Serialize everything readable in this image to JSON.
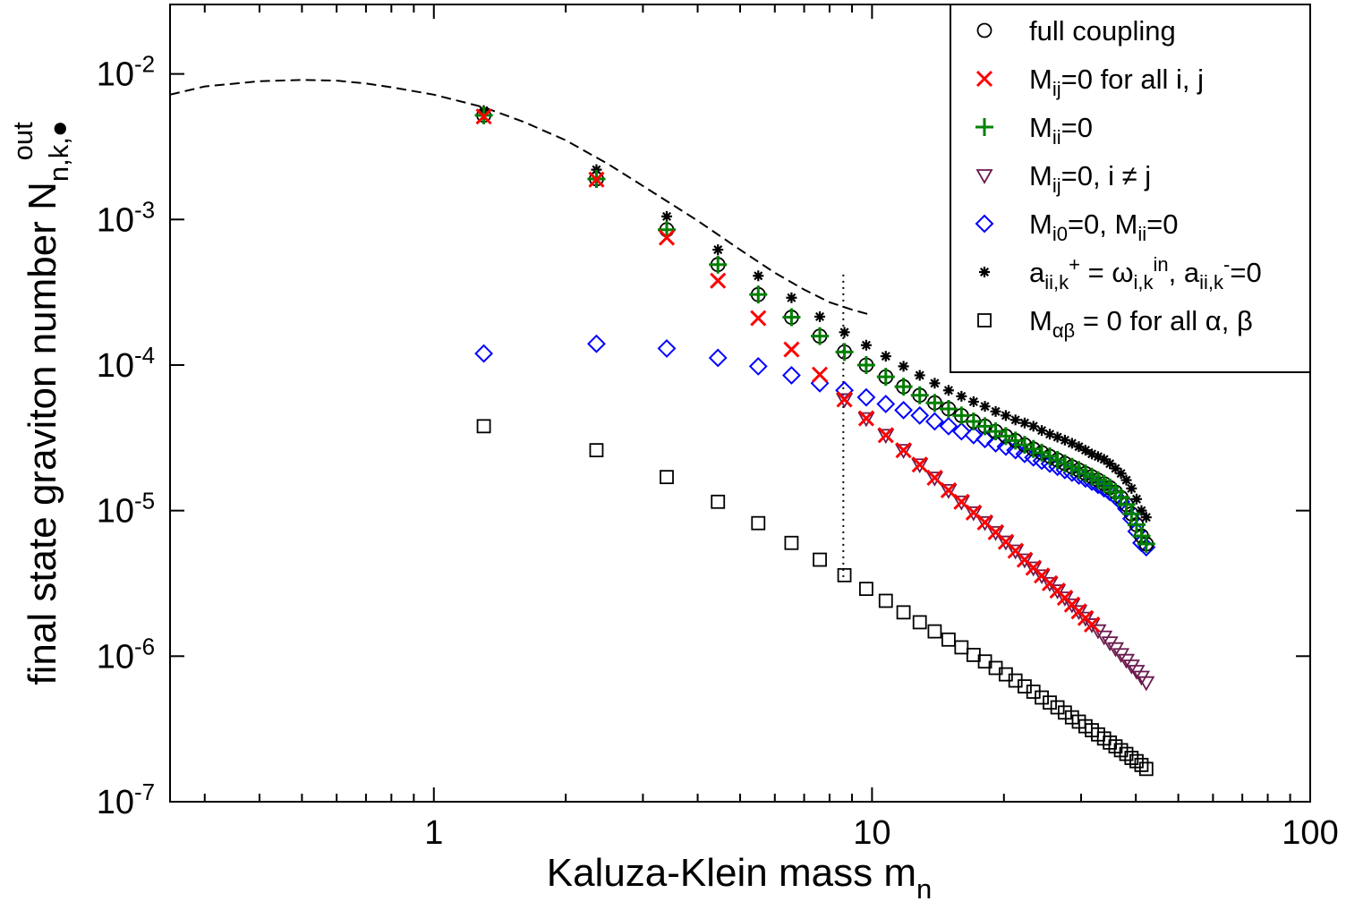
{
  "chart_data": {
    "type": "scatter",
    "xscale": "log",
    "yscale": "log",
    "xlim": [
      0.25,
      100
    ],
    "ylim": [
      1e-07,
      0.03
    ],
    "xlabel": {
      "main": "Kaluza-Klein mass m",
      "sub": "n"
    },
    "ylabel": {
      "main": "final state graviton number N",
      "sub": "n,k,●",
      "sup": "out"
    },
    "x_ticks": [
      {
        "value": 1,
        "label": "1"
      },
      {
        "value": 10,
        "label": "10"
      },
      {
        "value": 100,
        "label": "100"
      }
    ],
    "y_ticks": [
      {
        "value": 1e-07,
        "base": "10",
        "exp": "-7"
      },
      {
        "value": 1e-06,
        "base": "10",
        "exp": "-6"
      },
      {
        "value": 1e-05,
        "base": "10",
        "exp": "-5"
      },
      {
        "value": 0.0001,
        "base": "10",
        "exp": "-4"
      },
      {
        "value": 0.001,
        "base": "10",
        "exp": "-3"
      },
      {
        "value": 0.01,
        "base": "10",
        "exp": "-2"
      }
    ],
    "grid": false,
    "legend_position": "top-right",
    "legend": [
      {
        "marker": "circle",
        "color": "#000000",
        "parts": [
          [
            "full coupling",
            ""
          ]
        ]
      },
      {
        "marker": "cross",
        "color": "#ff0000",
        "parts": [
          [
            "M",
            ""
          ],
          [
            "ij",
            "sub"
          ],
          [
            "=0 for all i, j",
            ""
          ]
        ]
      },
      {
        "marker": "plus",
        "color": "#008000",
        "parts": [
          [
            "M",
            ""
          ],
          [
            "ii",
            "sub"
          ],
          [
            "=0",
            ""
          ]
        ]
      },
      {
        "marker": "triangle-down",
        "color": "#6a1b4d",
        "parts": [
          [
            "M",
            ""
          ],
          [
            "ij",
            "sub"
          ],
          [
            "=0, i ≠ j",
            ""
          ]
        ]
      },
      {
        "marker": "diamond",
        "color": "#0000ff",
        "parts": [
          [
            "M",
            ""
          ],
          [
            "i0",
            "sub"
          ],
          [
            "=0, M",
            ""
          ],
          [
            "ii",
            "sub"
          ],
          [
            "=0",
            ""
          ]
        ]
      },
      {
        "marker": "star",
        "color": "#000000",
        "parts": [
          [
            "a",
            ""
          ],
          [
            "ii,k",
            "sub"
          ],
          [
            "+",
            "sup"
          ],
          [
            " = ω",
            ""
          ],
          [
            "i,k",
            "sub"
          ],
          [
            "in",
            "sup"
          ],
          [
            ", a",
            ""
          ],
          [
            "ii,k",
            "sub"
          ],
          [
            "-",
            "sup"
          ],
          [
            "=0",
            ""
          ]
        ]
      },
      {
        "marker": "square",
        "color": "#000000",
        "parts": [
          [
            "M",
            ""
          ],
          [
            "αβ",
            "sub"
          ],
          [
            " = 0  for all α, β",
            ""
          ]
        ]
      }
    ],
    "reference_lines": {
      "dashed_curve": {
        "x": [
          0.25,
          0.3,
          0.4,
          0.5,
          0.6,
          0.7,
          0.8,
          1.0,
          1.3,
          1.6,
          2.0,
          2.5,
          3.0,
          4.0,
          5.0,
          6.0,
          7.0,
          8.0,
          9.0,
          10.0
        ],
        "y": [
          0.0072,
          0.0082,
          0.0089,
          0.0091,
          0.009,
          0.0086,
          0.0081,
          0.0072,
          0.0059,
          0.0047,
          0.0035,
          0.0024,
          0.0017,
          0.00098,
          0.00062,
          0.00043,
          0.00033,
          0.00027,
          0.00024,
          0.00022
        ]
      },
      "dotted_vertical": {
        "x": 8.6,
        "y": [
          3.5e-06,
          0.00043
        ]
      }
    },
    "series": [
      {
        "marker": "square",
        "color": "#000000",
        "x": [
          1.3,
          2.35,
          3.4,
          4.45,
          5.5,
          6.55,
          7.6,
          8.65,
          9.7,
          10.75,
          11.8,
          12.85,
          13.9,
          14.95,
          16.0,
          17.05,
          18.1,
          19.15,
          20.2,
          21.25,
          22.3,
          23.35,
          24.4,
          25.45,
          26.5,
          27.55,
          28.6,
          29.65,
          30.7,
          31.75,
          32.8,
          33.85,
          34.9,
          35.95,
          37.0,
          38.05,
          39.1,
          40.15,
          41.2,
          42.25
        ],
        "y": [
          3.8e-05,
          2.6e-05,
          1.7e-05,
          1.15e-05,
          8.2e-06,
          6e-06,
          4.6e-06,
          3.6e-06,
          2.9e-06,
          2.4e-06,
          2e-06,
          1.71e-06,
          1.48e-06,
          1.3e-06,
          1.15e-06,
          1.02e-06,
          9.2e-07,
          8.3e-07,
          7.5e-07,
          6.8e-07,
          6.2e-07,
          5.7e-07,
          5.2e-07,
          4.8e-07,
          4.45e-07,
          4.1e-07,
          3.8e-07,
          3.55e-07,
          3.3e-07,
          3.1e-07,
          2.9e-07,
          2.72e-07,
          2.55e-07,
          2.4e-07,
          2.26e-07,
          2.13e-07,
          2e-07,
          1.9e-07,
          1.79e-07,
          1.68e-07
        ]
      },
      {
        "marker": "diamond",
        "color": "#0000ff",
        "x": [
          1.3,
          2.35,
          3.4,
          4.45,
          5.5,
          6.55,
          7.6,
          8.65,
          9.7,
          10.75,
          11.8,
          12.85,
          13.9,
          14.95,
          16.0,
          17.05,
          18.1,
          19.15,
          20.2,
          21.25,
          22.3,
          23.35,
          24.4,
          25.45,
          26.5,
          27.55,
          28.6,
          29.65,
          30.7,
          31.75,
          32.8,
          33.85,
          34.9,
          35.95,
          37.0,
          38.05,
          39.1,
          40.15,
          41.2,
          42.25
        ],
        "y": [
          0.00012,
          0.00014,
          0.00013,
          0.000112,
          9.8e-05,
          8.5e-05,
          7.5e-05,
          6.7e-05,
          6e-05,
          5.4e-05,
          4.9e-05,
          4.5e-05,
          4.1e-05,
          3.8e-05,
          3.5e-05,
          3.3e-05,
          3.1e-05,
          2.9e-05,
          2.75e-05,
          2.6e-05,
          2.45e-05,
          2.32e-05,
          2.2e-05,
          2.1e-05,
          2e-05,
          1.9e-05,
          1.82e-05,
          1.74e-05,
          1.66e-05,
          1.58e-05,
          1.5e-05,
          1.42e-05,
          1.34e-05,
          1.25e-05,
          1.15e-05,
          1.03e-05,
          8.8e-06,
          7.2e-06,
          6e-06,
          5.6e-06
        ]
      },
      {
        "marker": "star",
        "color": "#000000",
        "x": [
          1.3,
          2.35,
          3.4,
          4.45,
          5.5,
          6.55,
          7.6,
          8.65,
          9.7,
          10.75,
          11.8,
          12.85,
          13.9,
          14.95,
          16.0,
          17.05,
          18.1,
          19.15,
          20.2,
          21.25,
          22.3,
          23.35,
          24.4,
          25.45,
          26.5,
          27.55,
          28.6,
          29.65,
          30.7,
          31.75,
          32.8,
          33.85,
          34.9,
          35.95,
          37.0,
          38.05,
          39.1,
          40.15,
          41.2,
          42.25
        ],
        "y": [
          0.0056,
          0.0022,
          0.00105,
          0.00062,
          0.00041,
          0.00029,
          0.000215,
          0.000168,
          0.000137,
          0.000115,
          9.8e-05,
          8.5e-05,
          7.5e-05,
          6.7e-05,
          6.1e-05,
          5.6e-05,
          5.2e-05,
          4.8e-05,
          4.5e-05,
          4.2e-05,
          4e-05,
          3.8e-05,
          3.55e-05,
          3.35e-05,
          3.2e-05,
          3.05e-05,
          2.9e-05,
          2.75e-05,
          2.6e-05,
          2.45e-05,
          2.35e-05,
          2.25e-05,
          2.1e-05,
          1.95e-05,
          1.8e-05,
          1.62e-05,
          1.42e-05,
          1.2e-05,
          1e-05,
          9e-06
        ]
      },
      {
        "marker": "triangle-down",
        "color": "#6a1b4d",
        "x": [
          8.65,
          9.7,
          10.75,
          11.8,
          12.85,
          13.9,
          14.95,
          16.0,
          17.05,
          18.1,
          19.15,
          20.2,
          21.25,
          22.3,
          23.35,
          24.4,
          25.45,
          26.5,
          27.55,
          28.6,
          29.65,
          30.7,
          31.75,
          32.8,
          33.85,
          34.9,
          35.95,
          37.0,
          38.05,
          39.1,
          40.15,
          41.2,
          42.25
        ],
        "y": [
          5.8e-05,
          4.3e-05,
          3.3e-05,
          2.6e-05,
          2.07e-05,
          1.68e-05,
          1.38e-05,
          1.15e-05,
          9.7e-06,
          8.3e-06,
          7.1e-06,
          6.1e-06,
          5.3e-06,
          4.6e-06,
          4.05e-06,
          3.58e-06,
          3.17e-06,
          2.82e-06,
          2.52e-06,
          2.26e-06,
          2.03e-06,
          1.83e-06,
          1.65e-06,
          1.5e-06,
          1.36e-06,
          1.24e-06,
          1.13e-06,
          1.03e-06,
          9.4e-07,
          8.6e-07,
          7.9e-07,
          7.2e-07,
          6.6e-07
        ]
      },
      {
        "marker": "circle",
        "color": "#000000",
        "x": [
          1.3,
          2.35,
          3.4,
          4.45,
          5.5,
          6.55,
          7.6,
          8.65,
          9.7,
          10.75,
          11.8,
          12.85,
          13.9,
          14.95,
          16.0,
          17.05,
          18.1,
          19.15,
          20.2,
          21.25,
          22.3,
          23.35,
          24.4,
          25.45,
          26.5,
          27.55,
          28.6,
          29.65,
          30.7,
          31.75,
          32.8,
          33.85,
          34.9,
          35.95,
          37.0,
          38.05,
          39.1,
          40.15,
          41.2,
          42.25
        ],
        "y": [
          0.0052,
          0.0019,
          0.00085,
          0.00049,
          0.000305,
          0.000213,
          0.000158,
          0.000123,
          0.0001,
          8.3e-05,
          7.1e-05,
          6.2e-05,
          5.5e-05,
          5e-05,
          4.5e-05,
          4.1e-05,
          3.8e-05,
          3.5e-05,
          3.25e-05,
          3.03e-05,
          2.83e-05,
          2.65e-05,
          2.5e-05,
          2.36e-05,
          2.23e-05,
          2.11e-05,
          2e-05,
          1.9e-05,
          1.8e-05,
          1.71e-05,
          1.62e-05,
          1.53e-05,
          1.44e-05,
          1.34e-05,
          1.23e-05,
          1.1e-05,
          9.5e-06,
          8e-06,
          6.7e-06,
          5.9e-06
        ]
      },
      {
        "marker": "plus",
        "color": "#008000",
        "x": [
          1.3,
          2.35,
          3.4,
          4.45,
          5.5,
          6.55,
          7.6,
          8.65,
          9.7,
          10.75,
          11.8,
          12.85,
          13.9,
          14.95,
          16.0,
          17.05,
          18.1,
          19.15,
          20.2,
          21.25,
          22.3,
          23.35,
          24.4,
          25.45,
          26.5,
          27.55,
          28.6,
          29.65,
          30.7,
          31.75,
          32.8,
          33.85,
          34.9,
          35.95,
          37.0,
          38.05,
          39.1,
          40.15,
          41.2,
          42.25
        ],
        "y": [
          0.0052,
          0.0019,
          0.00085,
          0.00049,
          0.000305,
          0.000213,
          0.000158,
          0.000123,
          0.0001,
          8.3e-05,
          7.1e-05,
          6.2e-05,
          5.5e-05,
          5e-05,
          4.5e-05,
          4.1e-05,
          3.8e-05,
          3.5e-05,
          3.25e-05,
          3.03e-05,
          2.83e-05,
          2.65e-05,
          2.5e-05,
          2.36e-05,
          2.23e-05,
          2.11e-05,
          2e-05,
          1.9e-05,
          1.8e-05,
          1.71e-05,
          1.62e-05,
          1.53e-05,
          1.44e-05,
          1.34e-05,
          1.23e-05,
          1.1e-05,
          9.5e-06,
          8e-06,
          6.7e-06,
          5.9e-06
        ]
      },
      {
        "marker": "cross",
        "color": "#ff0000",
        "x": [
          1.3,
          2.35,
          3.4,
          4.45,
          5.5,
          6.55,
          7.6,
          8.65,
          9.7,
          10.75,
          11.8,
          12.85,
          13.9,
          14.95,
          16.0,
          17.05,
          18.1,
          19.15,
          20.2,
          21.25,
          22.3,
          23.35,
          24.4,
          25.45,
          26.5,
          27.55,
          28.6,
          29.65,
          30.7,
          31.75
        ],
        "y": [
          0.0051,
          0.00188,
          0.00075,
          0.00038,
          0.00021,
          0.000128,
          8.6e-05,
          5.8e-05,
          4.3e-05,
          3.3e-05,
          2.6e-05,
          2.07e-05,
          1.68e-05,
          1.38e-05,
          1.15e-05,
          9.7e-06,
          8.3e-06,
          7.1e-06,
          6.1e-06,
          5.3e-06,
          4.6e-06,
          4.05e-06,
          3.58e-06,
          3.17e-06,
          2.82e-06,
          2.52e-06,
          2.26e-06,
          2.03e-06,
          1.83e-06,
          1.65e-06
        ]
      }
    ]
  }
}
